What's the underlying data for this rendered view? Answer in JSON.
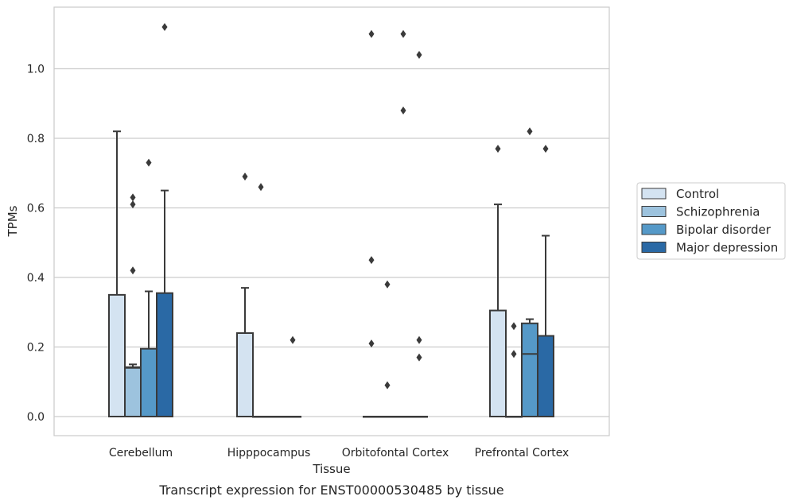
{
  "caption": "Transcript expression for ENST00000530485 by tissue",
  "chart_data": {
    "type": "box",
    "xlabel": "Tissue",
    "ylabel": "TPMs",
    "ylim": [
      -0.055,
      1.18
    ],
    "yticks": [
      "0.0",
      "0.2",
      "0.4",
      "0.6",
      "0.8",
      "1.0"
    ],
    "grid": true,
    "legend_position": "right",
    "categories": [
      "Cerebellum",
      "Hipppocampus",
      "Orbitofontal Cortex",
      "Prefrontal Cortex"
    ],
    "series": [
      {
        "name": "Control",
        "color": "#d4e3f1",
        "boxes": [
          {
            "min": 0,
            "q1": 0,
            "median": 0,
            "q3": 0.35,
            "max": 0.82,
            "outliers": []
          },
          {
            "min": 0,
            "q1": 0,
            "median": 0,
            "q3": 0.24,
            "max": 0.37,
            "outliers": [
              0.69
            ]
          },
          {
            "min": 0,
            "q1": 0,
            "median": 0,
            "q3": 0,
            "max": 0,
            "outliers": [
              0.45,
              0.21,
              1.1
            ]
          },
          {
            "min": 0,
            "q1": 0,
            "median": 0,
            "q3": 0.305,
            "max": 0.61,
            "outliers": [
              0.77
            ]
          }
        ]
      },
      {
        "name": "Schizophrenia",
        "color": "#9dc3de",
        "boxes": [
          {
            "min": 0,
            "q1": 0,
            "median": 0.14,
            "q3": 0.142,
            "max": 0.15,
            "outliers": [
              0.42,
              0.61,
              0.63
            ]
          },
          {
            "min": 0,
            "q1": 0,
            "median": 0,
            "q3": 0,
            "max": 0,
            "outliers": [
              0.66
            ]
          },
          {
            "min": 0,
            "q1": 0,
            "median": 0,
            "q3": 0,
            "max": 0,
            "outliers": [
              0.09,
              0.38
            ]
          },
          {
            "min": 0,
            "q1": 0,
            "median": 0,
            "q3": 0,
            "max": 0,
            "outliers": [
              0.18,
              0.26
            ]
          }
        ]
      },
      {
        "name": "Bipolar disorder",
        "color": "#5599c8",
        "boxes": [
          {
            "min": 0,
            "q1": 0,
            "median": 0,
            "q3": 0.195,
            "max": 0.36,
            "outliers": [
              0.73
            ]
          },
          {
            "min": 0,
            "q1": 0,
            "median": 0,
            "q3": 0,
            "max": 0,
            "outliers": []
          },
          {
            "min": 0,
            "q1": 0,
            "median": 0,
            "q3": 0,
            "max": 0,
            "outliers": [
              0.88,
              1.1
            ]
          },
          {
            "min": 0,
            "q1": 0,
            "median": 0.18,
            "q3": 0.268,
            "max": 0.28,
            "outliers": [
              0.82
            ]
          }
        ]
      },
      {
        "name": "Major depression",
        "color": "#2a69a5",
        "boxes": [
          {
            "min": 0,
            "q1": 0,
            "median": 0,
            "q3": 0.355,
            "max": 0.65,
            "outliers": [
              1.12
            ]
          },
          {
            "min": 0,
            "q1": 0,
            "median": 0,
            "q3": 0,
            "max": 0,
            "outliers": [
              0.22
            ]
          },
          {
            "min": 0,
            "q1": 0,
            "median": 0,
            "q3": 0,
            "max": 0,
            "outliers": [
              0.17,
              0.22,
              1.04
            ]
          },
          {
            "min": 0,
            "q1": 0,
            "median": 0,
            "q3": 0.232,
            "max": 0.52,
            "outliers": [
              0.77
            ]
          }
        ]
      }
    ]
  }
}
